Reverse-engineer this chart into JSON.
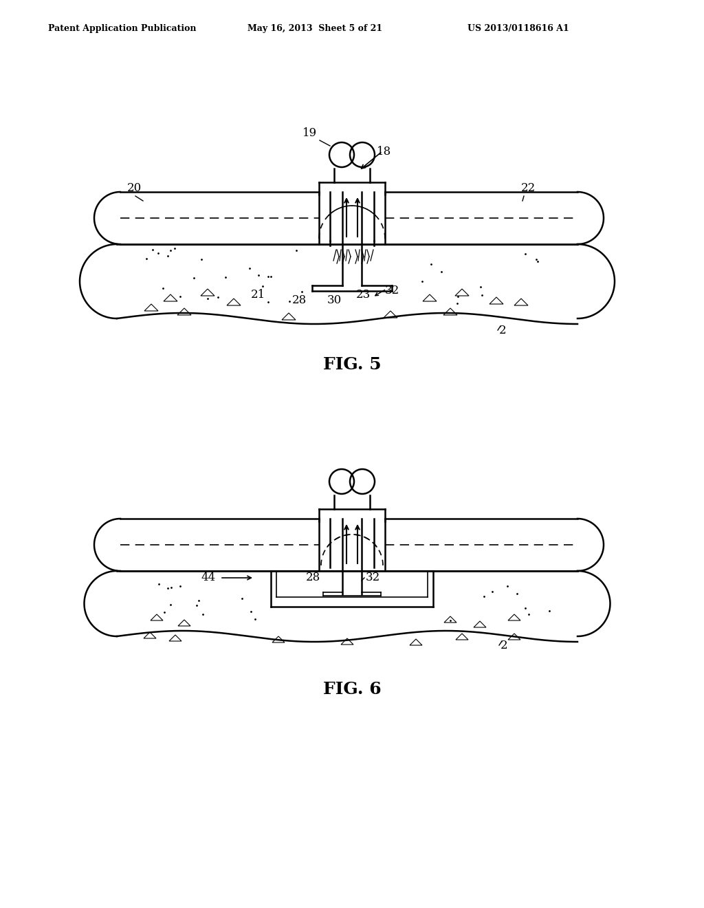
{
  "bg_color": "#ffffff",
  "line_color": "#000000",
  "header_left": "Patent Application Publication",
  "header_mid": "May 16, 2013  Sheet 5 of 21",
  "header_right": "US 2013/0118616 A1",
  "fig5_label": "FIG. 5",
  "fig6_label": "FIG. 6"
}
